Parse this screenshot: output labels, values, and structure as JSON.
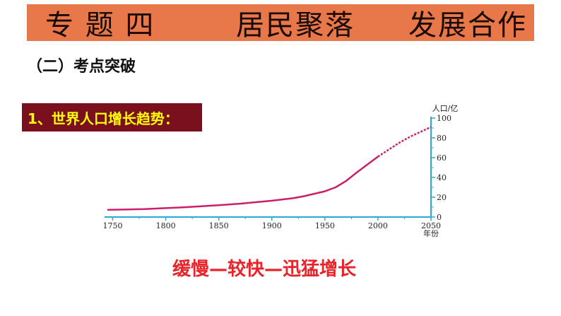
{
  "banner": {
    "part1": "专 题 四",
    "part2": "居民聚落",
    "part3": "发展合作"
  },
  "subtitle": "（二）考点突破",
  "section_title": "1、世界人口增长趋势：",
  "summary": "缓慢—较快—迅猛增长",
  "colors": {
    "banner": "#e8784a",
    "section_bg": "#7a0f1e",
    "section_text": "#ffff00",
    "curve": "#cc1f6a",
    "axis": "#29a9d8",
    "summary": "#e8232a"
  },
  "chart_data": {
    "type": "line",
    "ylabel": "人口/亿",
    "xlabel": "年份",
    "xlim": [
      1745,
      2050
    ],
    "ylim": [
      0,
      100
    ],
    "x_ticks": [
      1750,
      1800,
      1850,
      1900,
      1950,
      2000,
      2050
    ],
    "y_ticks": [
      0,
      20,
      40,
      60,
      80,
      100
    ],
    "series": [
      {
        "style": "solid",
        "x": [
          1745,
          1780,
          1800,
          1820,
          1850,
          1870,
          1900,
          1920,
          1930,
          1940,
          1950,
          1960,
          1970,
          1980,
          1990,
          2000
        ],
        "y": [
          7.2,
          8.0,
          9.0,
          10.0,
          12.0,
          13.5,
          16.5,
          19.0,
          21.0,
          23.5,
          26.0,
          30.0,
          36.5,
          45.0,
          53.0,
          61.0
        ]
      },
      {
        "style": "dashed",
        "x": [
          2000,
          2010,
          2020,
          2030,
          2040,
          2050
        ],
        "y": [
          61.0,
          68.0,
          75.0,
          81.0,
          86.0,
          91.0
        ]
      }
    ]
  }
}
